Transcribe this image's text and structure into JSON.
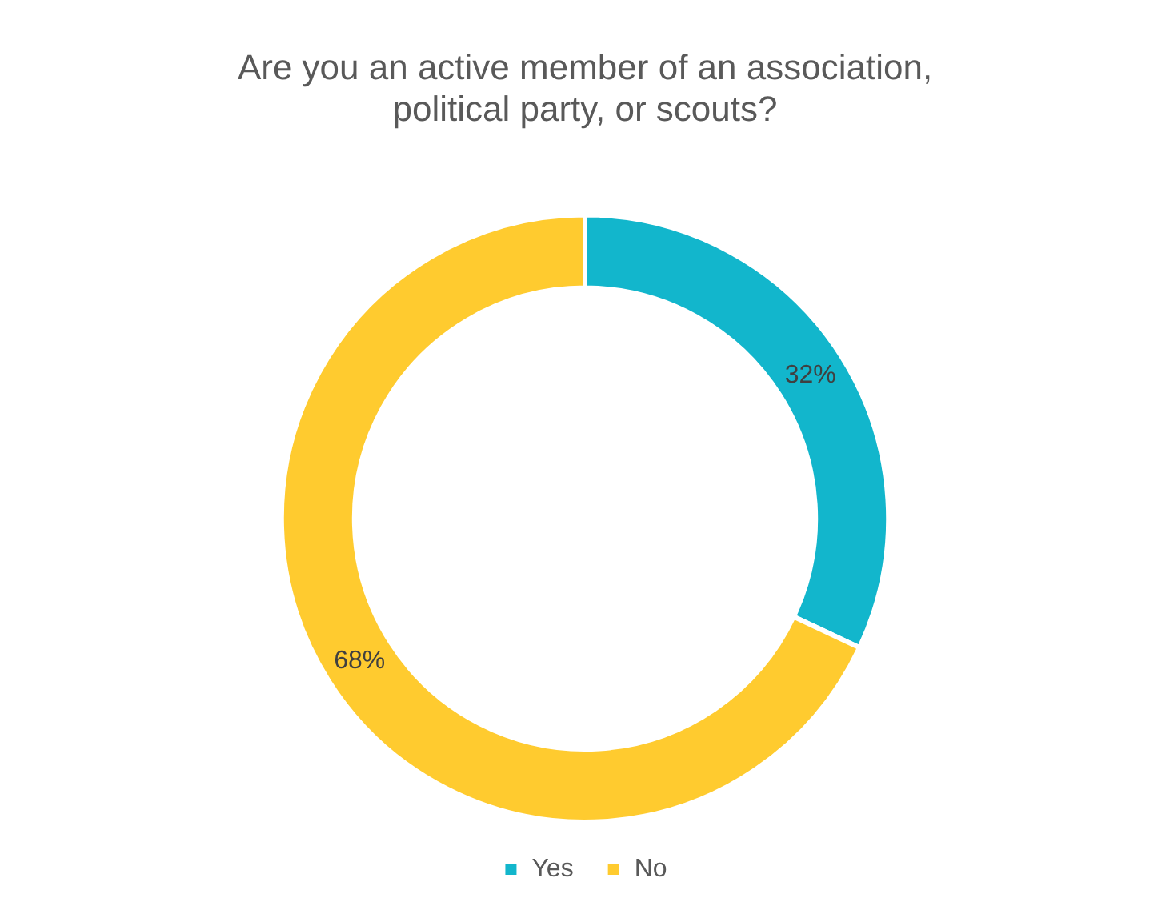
{
  "chart_data": {
    "type": "donut",
    "title": "Are you an active member of an association, political party, or scouts?",
    "categories": [
      "Yes",
      "No"
    ],
    "values": [
      32,
      68
    ],
    "colors": [
      "#12b6cc",
      "#ffcb2f"
    ],
    "value_labels": [
      "32%",
      "68%"
    ],
    "legend": "bottom"
  }
}
